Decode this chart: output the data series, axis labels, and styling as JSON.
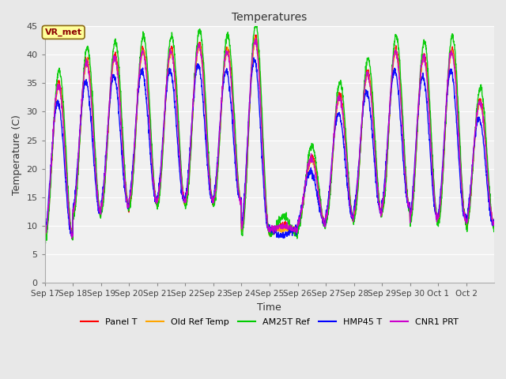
{
  "title": "Temperatures",
  "xlabel": "Time",
  "ylabel": "Temperature (C)",
  "ylim": [
    0,
    45
  ],
  "yticks": [
    0,
    5,
    10,
    15,
    20,
    25,
    30,
    35,
    40,
    45
  ],
  "annotation_text": "VR_met",
  "series_colors": {
    "Panel T": "#ff0000",
    "Old Ref Temp": "#ffa500",
    "AM25T Ref": "#00cc00",
    "HMP45 T": "#0000ff",
    "CNR1 PRT": "#cc00cc"
  },
  "bg_color": "#e8e8e8",
  "plot_bg": "#f0f0f0",
  "xtick_labels": [
    "Sep 17",
    "Sep 18",
    "Sep 19",
    "Sep 20",
    "Sep 21",
    "Sep 22",
    "Sep 23",
    "Sep 24",
    "Sep 25",
    "Sep 26",
    "Sep 27",
    "Sep 28",
    "Sep 29",
    "Sep 30",
    "Oct 1",
    "Oct 2"
  ],
  "num_days": 16,
  "points_per_day": 144,
  "daily_max": [
    35,
    39,
    40,
    41,
    41,
    42,
    41,
    43,
    10,
    22,
    33,
    37,
    41,
    40,
    41,
    32
  ],
  "daily_min": [
    8,
    12,
    13,
    14,
    14,
    14,
    14,
    9,
    9,
    10,
    11,
    12,
    13,
    11,
    11,
    10
  ],
  "cold_spell_day": 8,
  "cold_spell_max": 10,
  "cold_spell_min": 9
}
